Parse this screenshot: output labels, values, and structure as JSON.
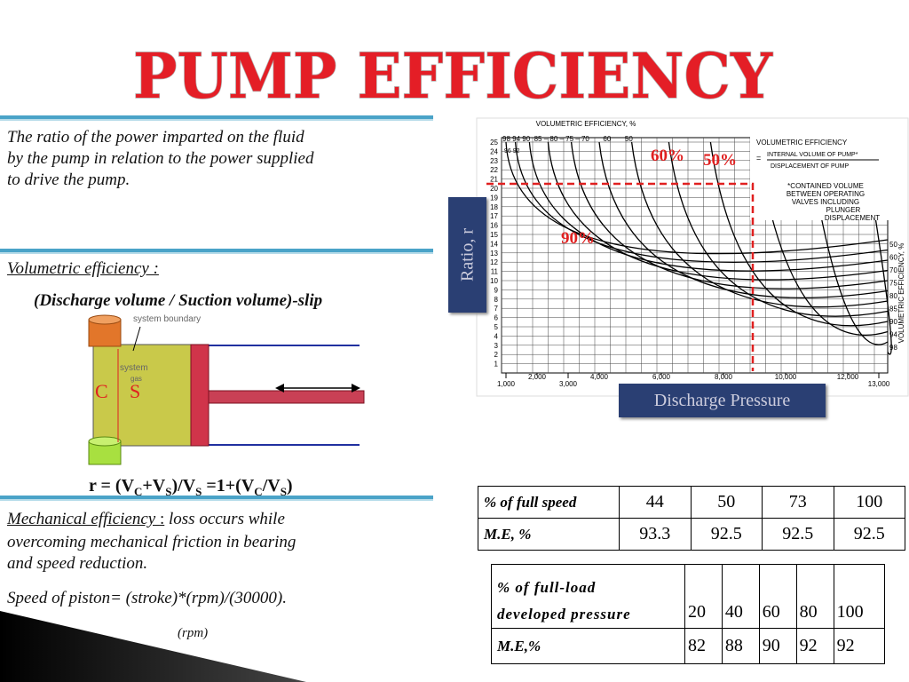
{
  "title": "PUMP  EFFICIENCY",
  "intro": [
    "The ratio of the power imparted on the fluid",
    "by the pump in relation to the power supplied",
    "to drive the pump."
  ],
  "volumetric": {
    "heading": "Volumetric efficiency :",
    "definition": "(Discharge volume / Suction volume)-slip",
    "diagram": {
      "boundary": "system boundary",
      "system": "system",
      "gas": "gas",
      "c": "C",
      "s": "S"
    },
    "formula": [
      {
        "text": "r = (V"
      },
      {
        "text": "C",
        "sub": true
      },
      {
        "text": "+V"
      },
      {
        "text": "S",
        "sub": true
      },
      {
        "text": ")/V"
      },
      {
        "text": "S",
        "sub": true
      },
      {
        "text": "  =1+(V"
      },
      {
        "text": "C",
        "sub": true
      },
      {
        "text": "/V"
      },
      {
        "text": "S",
        "sub": true
      },
      {
        "text": ")"
      }
    ]
  },
  "mechanical": {
    "heading": "Mechanical efficiency ",
    "colon": ":",
    "text_first": " loss occurs while",
    "lines": [
      "overcoming mechanical friction in bearing",
      "and speed reduction."
    ],
    "speed": "Speed of piston= (stroke)*(rpm)/(30000).",
    "rpm": "(rpm)"
  },
  "figure": {
    "top_axis_title": "VOLUMETRIC EFFICIENCY, %",
    "top_labels": "98 94 90  85 – 80 – 75 – 70       60       50",
    "top_small": "96 92",
    "right_axis_title": "VOLUMETRIC EFFICIENCY, %",
    "right_labels": [
      50,
      60,
      70,
      75,
      80,
      85,
      90,
      94,
      98
    ],
    "yticks": [
      1,
      2,
      3,
      4,
      5,
      6,
      7,
      8,
      9,
      10,
      11,
      12,
      13,
      14,
      15,
      16,
      17,
      18,
      19,
      20,
      21,
      22,
      23,
      24,
      25
    ],
    "xticks_bottom": [
      {
        "value": 1000,
        "label": "1,000"
      },
      {
        "value": 3000,
        "label": "3,000"
      },
      {
        "value": 13000,
        "label": "13,000"
      }
    ],
    "xticks_top": [
      {
        "value": 2000,
        "label": "2,000"
      },
      {
        "value": 4000,
        "label": "4,000"
      },
      {
        "value": 6000,
        "label": "6,000"
      },
      {
        "value": 8000,
        "label": "8,000"
      },
      {
        "value": 10000,
        "label": "10,000"
      },
      {
        "value": 12000,
        "label": "12,000"
      }
    ],
    "legend": {
      "title": "VOLUMETRIC EFFICIENCY",
      "eq": "=",
      "numerator": "INTERNAL VOLUME OF PUMP*",
      "denominator": "DISPLACEMENT OF PUMP",
      "note": [
        "*CONTAINED VOLUME",
        "BETWEEN OPERATING",
        "VALVES INCLUDING",
        "PLUNGER",
        "DISPLACEMENT"
      ]
    },
    "ratio_label": "Ratio, r",
    "pressure_label": "Discharge Pressure",
    "marks": [
      "60%",
      "50%",
      "90%"
    ]
  },
  "table_speed": {
    "rows": [
      [
        "% of full speed",
        44,
        50,
        73,
        100
      ],
      [
        "M.E, %",
        93.3,
        92.5,
        92.5,
        92.5
      ]
    ]
  },
  "table_load": {
    "header": [
      "% of full-load",
      "developed pressure"
    ],
    "values": [
      20,
      40,
      60,
      80,
      100
    ],
    "row_label": "M.E,%",
    "row": [
      82,
      88,
      90,
      92,
      92
    ]
  }
}
